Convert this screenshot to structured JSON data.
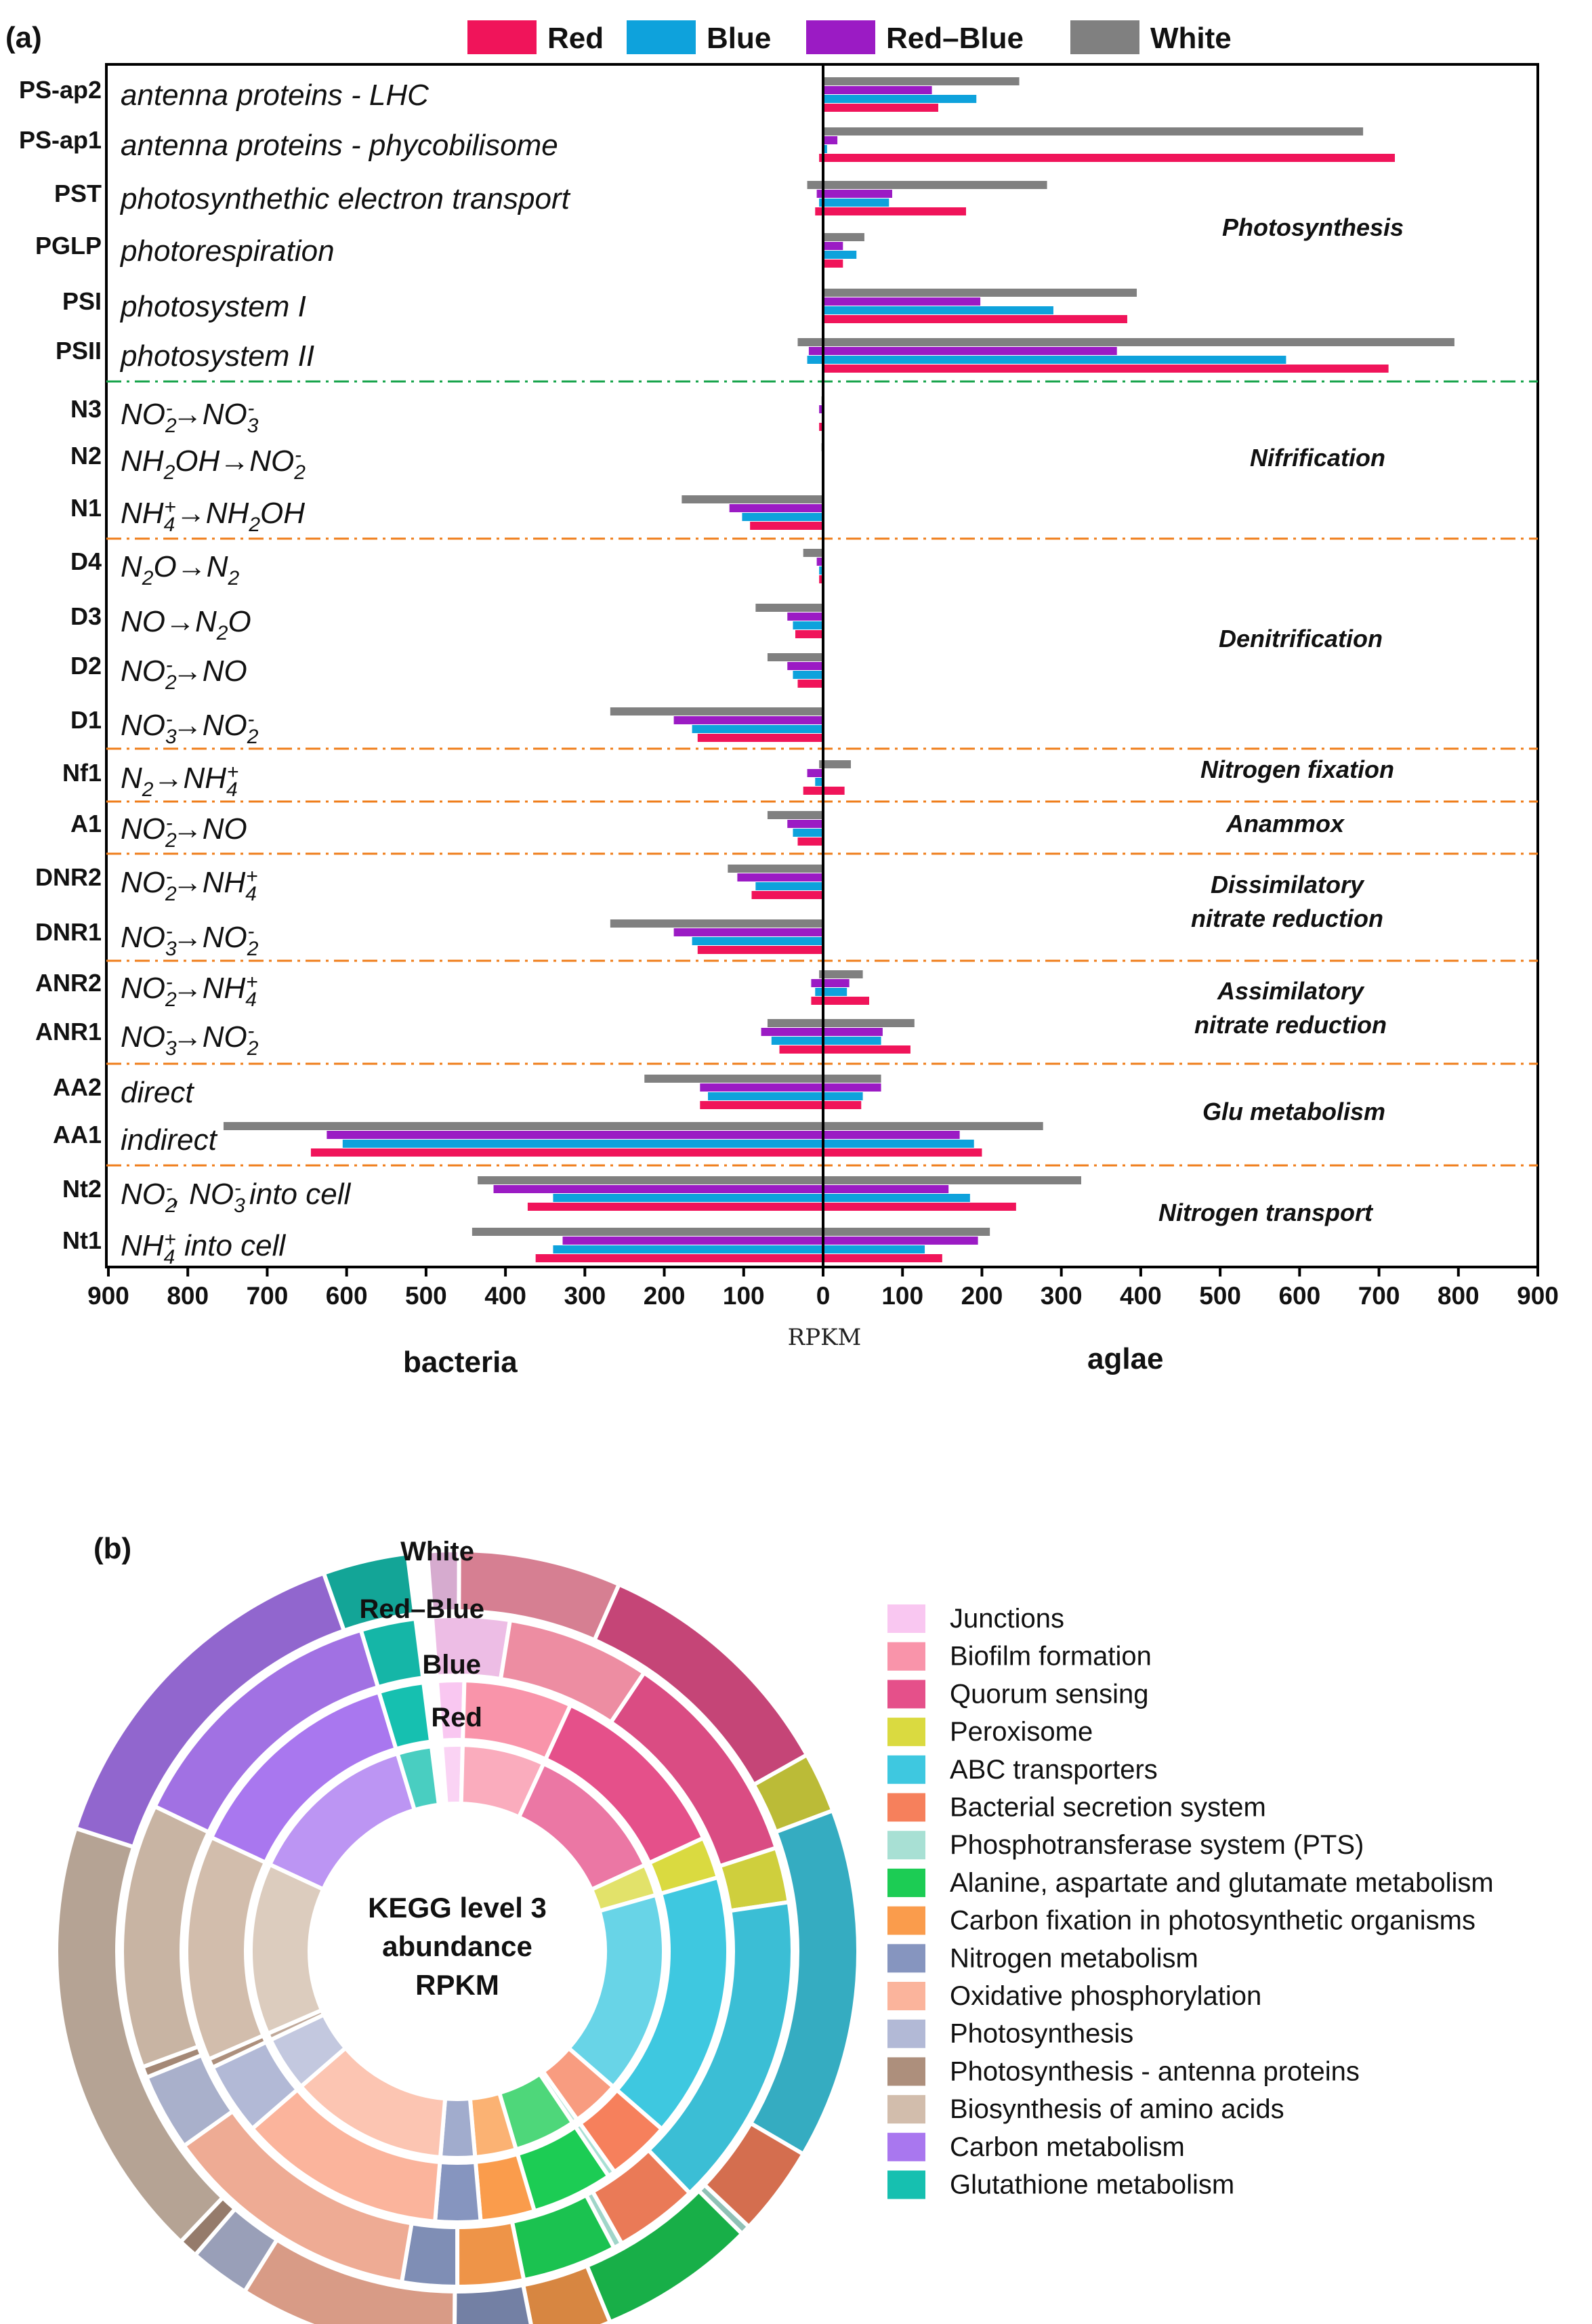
{
  "chart_data": [
    {
      "panel": "(a)",
      "type": "bar",
      "orientation": "horizontal-diverging",
      "xlabel": "RPKM",
      "left_side_label": "bacteria",
      "right_side_label": "aglae",
      "xlim": [
        -900,
        900
      ],
      "ticks": [
        "900",
        "800",
        "700",
        "600",
        "500",
        "400",
        "300",
        "200",
        "100",
        "0",
        "100",
        "200",
        "300",
        "400",
        "500",
        "600",
        "700",
        "800",
        "900"
      ],
      "legend": [
        {
          "name": "Red",
          "color": "#f0145a"
        },
        {
          "name": "Blue",
          "color": "#0ea2dc"
        },
        {
          "name": "Red–Blue",
          "color": "#9b1bc4"
        },
        {
          "name": "White",
          "color": "#808080"
        }
      ],
      "categories": [
        {
          "code": "PS-ap2",
          "desc": "antenna proteins - LHC",
          "bacteria": {
            "Red": 0,
            "Blue": 0,
            "Red–Blue": 0,
            "White": 0
          },
          "algae": {
            "Red": 145,
            "Blue": 193,
            "Red–Blue": 137,
            "White": 247
          }
        },
        {
          "code": "PS-ap1",
          "desc": "antenna proteins - phycobilisome",
          "bacteria": {
            "Red": 5,
            "Blue": 0,
            "Red–Blue": 0,
            "White": 0
          },
          "algae": {
            "Red": 720,
            "Blue": 5,
            "Red–Blue": 18,
            "White": 680
          }
        },
        {
          "code": "PST",
          "desc": "photosynthethic electron transport",
          "bacteria": {
            "Red": 10,
            "Blue": 5,
            "Red–Blue": 8,
            "White": 20
          },
          "algae": {
            "Red": 180,
            "Blue": 83,
            "Red–Blue": 87,
            "White": 282
          }
        },
        {
          "code": "PGLP",
          "desc": "photorespiration",
          "bacteria": {
            "Red": 0,
            "Blue": 0,
            "Red–Blue": 0,
            "White": 0
          },
          "algae": {
            "Red": 25,
            "Blue": 42,
            "Red–Blue": 25,
            "White": 52
          }
        },
        {
          "code": "PSI",
          "desc": "photosystem I",
          "bacteria": {
            "Red": 0,
            "Blue": 0,
            "Red–Blue": 0,
            "White": 0
          },
          "algae": {
            "Red": 383,
            "Blue": 290,
            "Red–Blue": 198,
            "White": 395
          }
        },
        {
          "code": "PSII",
          "desc": "photosystem II",
          "bacteria": {
            "Red": 0,
            "Blue": 20,
            "Red–Blue": 18,
            "White": 32
          },
          "algae": {
            "Red": 712,
            "Blue": 583,
            "Red–Blue": 370,
            "White": 795
          }
        },
        {
          "code": "N3",
          "desc": "NO2- → NO3-",
          "bacteria": {
            "Red": 5,
            "Blue": 0,
            "Red–Blue": 5,
            "White": 2
          },
          "algae": {
            "Red": 0,
            "Blue": 0,
            "Red–Blue": 0,
            "White": 0
          }
        },
        {
          "code": "N2",
          "desc": "NH2OH → NO2-",
          "bacteria": {
            "Red": 0,
            "Blue": 0,
            "Red–Blue": 0,
            "White": 2
          },
          "algae": {
            "Red": 0,
            "Blue": 0,
            "Red–Blue": 0,
            "White": 0
          }
        },
        {
          "code": "N1",
          "desc": "NH4+ → NH2OH",
          "bacteria": {
            "Red": 92,
            "Blue": 102,
            "Red–Blue": 118,
            "White": 178
          },
          "algae": {
            "Red": 0,
            "Blue": 0,
            "Red–Blue": 0,
            "White": 0
          }
        },
        {
          "code": "D4",
          "desc": "N2O → N2",
          "bacteria": {
            "Red": 5,
            "Blue": 5,
            "Red–Blue": 8,
            "White": 25
          },
          "algae": {
            "Red": 0,
            "Blue": 0,
            "Red–Blue": 0,
            "White": 0
          }
        },
        {
          "code": "D3",
          "desc": "NO → N2O",
          "bacteria": {
            "Red": 35,
            "Blue": 38,
            "Red–Blue": 45,
            "White": 85
          },
          "algae": {
            "Red": 0,
            "Blue": 0,
            "Red–Blue": 0,
            "White": 0
          }
        },
        {
          "code": "D2",
          "desc": "NO2- → NO",
          "bacteria": {
            "Red": 32,
            "Blue": 38,
            "Red–Blue": 45,
            "White": 70
          },
          "algae": {
            "Red": 0,
            "Blue": 0,
            "Red–Blue": 0,
            "White": 0
          }
        },
        {
          "code": "D1",
          "desc": "NO3- → NO2-",
          "bacteria": {
            "Red": 158,
            "Blue": 165,
            "Red–Blue": 188,
            "White": 268
          },
          "algae": {
            "Red": 0,
            "Blue": 0,
            "Red–Blue": 0,
            "White": 0
          }
        },
        {
          "code": "Nf1",
          "desc": "N2 → NH4+",
          "bacteria": {
            "Red": 25,
            "Blue": 10,
            "Red–Blue": 20,
            "White": 5
          },
          "algae": {
            "Red": 27,
            "Blue": 0,
            "Red–Blue": 0,
            "White": 35
          }
        },
        {
          "code": "A1",
          "desc": "NO2- → NO",
          "bacteria": {
            "Red": 32,
            "Blue": 38,
            "Red–Blue": 45,
            "White": 70
          },
          "algae": {
            "Red": 0,
            "Blue": 0,
            "Red–Blue": 0,
            "White": 0
          }
        },
        {
          "code": "DNR2",
          "desc": "NO2- → NH4+",
          "bacteria": {
            "Red": 90,
            "Blue": 85,
            "Red–Blue": 108,
            "White": 120
          },
          "algae": {
            "Red": 0,
            "Blue": 0,
            "Red–Blue": 0,
            "White": 0
          }
        },
        {
          "code": "DNR1",
          "desc": "NO3- → NO2-",
          "bacteria": {
            "Red": 158,
            "Blue": 165,
            "Red–Blue": 188,
            "White": 268
          },
          "algae": {
            "Red": 0,
            "Blue": 0,
            "Red–Blue": 0,
            "White": 0
          }
        },
        {
          "code": "ANR2",
          "desc": "NO2- → NH4+",
          "bacteria": {
            "Red": 15,
            "Blue": 10,
            "Red–Blue": 15,
            "White": 5
          },
          "algae": {
            "Red": 58,
            "Blue": 30,
            "Red–Blue": 33,
            "White": 50
          }
        },
        {
          "code": "ANR1",
          "desc": "NO3- → NO2-",
          "bacteria": {
            "Red": 55,
            "Blue": 65,
            "Red–Blue": 78,
            "White": 70
          },
          "algae": {
            "Red": 110,
            "Blue": 73,
            "Red–Blue": 75,
            "White": 115
          }
        },
        {
          "code": "AA2",
          "desc": "direct",
          "bacteria": {
            "Red": 155,
            "Blue": 145,
            "Red–Blue": 155,
            "White": 225
          },
          "algae": {
            "Red": 48,
            "Blue": 50,
            "Red–Blue": 73,
            "White": 73
          }
        },
        {
          "code": "AA1",
          "desc": "indirect",
          "bacteria": {
            "Red": 645,
            "Blue": 605,
            "Red–Blue": 625,
            "White": 755
          },
          "algae": {
            "Red": 200,
            "Blue": 190,
            "Red–Blue": 172,
            "White": 277
          }
        },
        {
          "code": "Nt2",
          "desc": "NO2-, NO3- into cell",
          "bacteria": {
            "Red": 372,
            "Blue": 340,
            "Red–Blue": 415,
            "White": 435
          },
          "algae": {
            "Red": 243,
            "Blue": 185,
            "Red–Blue": 158,
            "White": 325
          }
        },
        {
          "code": "Nt1",
          "desc": "NH4+ into cell",
          "bacteria": {
            "Red": 362,
            "Blue": 340,
            "Red–Blue": 328,
            "White": 442
          },
          "algae": {
            "Red": 150,
            "Blue": 128,
            "Red–Blue": 195,
            "White": 210
          }
        }
      ],
      "groups": [
        {
          "name": "Photosynthesis",
          "rows": [
            "PS-ap2",
            "PS-ap1",
            "PST",
            "PGLP",
            "PSI",
            "PSII"
          ]
        },
        {
          "name": "Nifrification",
          "rows": [
            "N3",
            "N2",
            "N1"
          ]
        },
        {
          "name": "Denitrification",
          "rows": [
            "D4",
            "D3",
            "D2",
            "D1"
          ]
        },
        {
          "name": "Nitrogen fixation",
          "rows": [
            "Nf1"
          ]
        },
        {
          "name": "Anammox",
          "rows": [
            "A1"
          ]
        },
        {
          "name": "Dissimilatory nitrate reduction",
          "lines": [
            "Dissimilatory",
            "nitrate reduction"
          ],
          "rows": [
            "DNR2",
            "DNR1"
          ]
        },
        {
          "name": "Assimilatory nitrate reduction",
          "lines": [
            "Assimilatory",
            "nitrate reduction"
          ],
          "rows": [
            "ANR2",
            "ANR1"
          ]
        },
        {
          "name": "Glu metabolism",
          "rows": [
            "AA2",
            "AA1"
          ]
        },
        {
          "name": "Nitrogen transport",
          "rows": [
            "Nt2",
            "Nt1"
          ]
        }
      ]
    },
    {
      "panel": "(b)",
      "type": "pie",
      "subtype": "multi-ring donut",
      "center_label": [
        "KEGG level 3",
        "abundance",
        "RPKM"
      ],
      "rings_inner_to_outer": [
        "Red",
        "Blue",
        "Red–Blue",
        "White"
      ],
      "categories": [
        {
          "name": "Junctions",
          "color": "#f9c7f1"
        },
        {
          "name": "Biofilm formation",
          "color": "#f994aa"
        },
        {
          "name": "Quorum sensing",
          "color": "#e5508a"
        },
        {
          "name": "Peroxisome",
          "color": "#dada40"
        },
        {
          "name": "ABC transporters",
          "color": "#3ec8e0"
        },
        {
          "name": "Bacterial secretion system",
          "color": "#f6805c"
        },
        {
          "name": "Phosphotransferase system (PTS)",
          "color": "#a8e0d4"
        },
        {
          "name": "Alanine, aspartate and glutamate metabolism",
          "color": "#1ccc54"
        },
        {
          "name": "Carbon fixation in photosynthetic organisms",
          "color": "#fa9c4c"
        },
        {
          "name": "Nitrogen metabolism",
          "color": "#8695bf"
        },
        {
          "name": "Oxidative phosphorylation",
          "color": "#fbb49c"
        },
        {
          "name": "Photosynthesis",
          "color": "#b2b9d6"
        },
        {
          "name": "Photosynthesis - antenna proteins",
          "color": "#ad8f7c"
        },
        {
          "name": "Biosynthesis of amino acids",
          "color": "#d2bdac"
        },
        {
          "name": "Carbon metabolism",
          "color": "#a977ef"
        },
        {
          "name": "Glutathione metabolism",
          "color": "#16c0b0"
        }
      ],
      "series": [
        {
          "name": "Red",
          "values": [
            1.5,
            6.0,
            10.5,
            2.3,
            14.7,
            3.5,
            0.4,
            4.5,
            3.0,
            2.5,
            11.5,
            4.0,
            0.5,
            12.5,
            12.5,
            2.5
          ]
        },
        {
          "name": "Blue",
          "values": [
            1.5,
            6.0,
            10.5,
            2.3,
            14.7,
            3.5,
            0.4,
            4.5,
            3.0,
            2.5,
            11.5,
            4.0,
            0.5,
            12.5,
            12.5,
            2.5
          ]
        },
        {
          "name": "Red–Blue",
          "values": [
            3.5,
            6.5,
            10.0,
            2.5,
            14.3,
            3.8,
            0.4,
            4.3,
            3.0,
            2.5,
            11.8,
            3.5,
            0.5,
            12.0,
            12.5,
            2.5
          ]
        },
        {
          "name": "White",
          "values": [
            1.3,
            6.7,
            10.5,
            2.5,
            14.5,
            3.7,
            0.4,
            6.5,
            3.2,
            3.3,
            9.0,
            2.5,
            0.8,
            18.3,
            15.0,
            3.5
          ]
        }
      ]
    }
  ]
}
